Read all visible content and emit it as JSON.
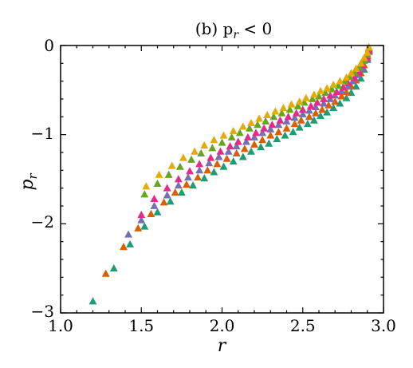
{
  "chart_data": {
    "type": "scatter",
    "title": "(b)  p",
    "title_sub": "r",
    "title_tail": " < 0",
    "xlabel": "r",
    "ylabel": "p",
    "ylabel_sub": "r",
    "xlim": [
      1.0,
      3.0
    ],
    "ylim": [
      -3,
      0
    ],
    "x_ticks": [
      "1.0",
      "1.5",
      "2.0",
      "2.5",
      "3.0"
    ],
    "y_ticks": [
      "0",
      "−1",
      "−2",
      "−3"
    ],
    "grid": false,
    "legend": "none",
    "marker": "triangle",
    "series": [
      {
        "color": "#1b9e77",
        "points": [
          [
            1.2,
            -2.87
          ],
          [
            1.33,
            -2.5
          ],
          [
            1.43,
            -2.23
          ],
          [
            1.52,
            -2.03
          ],
          [
            1.6,
            -1.87
          ],
          [
            1.68,
            -1.75
          ],
          [
            1.75,
            -1.65
          ],
          [
            1.82,
            -1.57
          ],
          [
            1.89,
            -1.49
          ],
          [
            1.95,
            -1.42
          ],
          [
            2.01,
            -1.36
          ],
          [
            2.07,
            -1.3
          ],
          [
            2.13,
            -1.25
          ],
          [
            2.18,
            -1.19
          ],
          [
            2.24,
            -1.14
          ],
          [
            2.29,
            -1.1
          ],
          [
            2.34,
            -1.05
          ],
          [
            2.39,
            -1.01
          ],
          [
            2.44,
            -0.97
          ],
          [
            2.48,
            -0.92
          ],
          [
            2.53,
            -0.88
          ],
          [
            2.57,
            -0.84
          ],
          [
            2.61,
            -0.79
          ],
          [
            2.65,
            -0.75
          ],
          [
            2.69,
            -0.7
          ],
          [
            2.73,
            -0.65
          ],
          [
            2.77,
            -0.59
          ],
          [
            2.8,
            -0.53
          ],
          [
            2.83,
            -0.46
          ],
          [
            2.86,
            -0.37
          ],
          [
            2.88,
            -0.27
          ],
          [
            2.9,
            -0.16
          ],
          [
            2.91,
            -0.06
          ]
        ]
      },
      {
        "color": "#d95f02",
        "points": [
          [
            1.28,
            -2.56
          ],
          [
            1.39,
            -2.26
          ],
          [
            1.48,
            -2.05
          ],
          [
            1.56,
            -1.89
          ],
          [
            1.64,
            -1.76
          ],
          [
            1.71,
            -1.65
          ],
          [
            1.78,
            -1.56
          ],
          [
            1.85,
            -1.48
          ],
          [
            1.91,
            -1.4
          ],
          [
            1.97,
            -1.33
          ],
          [
            2.03,
            -1.27
          ],
          [
            2.09,
            -1.21
          ],
          [
            2.14,
            -1.16
          ],
          [
            2.2,
            -1.11
          ],
          [
            2.25,
            -1.06
          ],
          [
            2.3,
            -1.01
          ],
          [
            2.35,
            -0.97
          ],
          [
            2.4,
            -0.93
          ],
          [
            2.45,
            -0.88
          ],
          [
            2.49,
            -0.84
          ],
          [
            2.54,
            -0.8
          ],
          [
            2.58,
            -0.76
          ],
          [
            2.62,
            -0.72
          ],
          [
            2.66,
            -0.67
          ],
          [
            2.7,
            -0.63
          ],
          [
            2.74,
            -0.57
          ],
          [
            2.77,
            -0.52
          ],
          [
            2.8,
            -0.46
          ],
          [
            2.83,
            -0.39
          ],
          [
            2.86,
            -0.31
          ],
          [
            2.88,
            -0.22
          ],
          [
            2.9,
            -0.12
          ],
          [
            2.91,
            -0.04
          ]
        ]
      },
      {
        "color": "#7570b3",
        "points": [
          [
            1.42,
            -2.12
          ],
          [
            1.5,
            -1.96
          ],
          [
            1.58,
            -1.8
          ],
          [
            1.66,
            -1.68
          ],
          [
            1.73,
            -1.57
          ],
          [
            1.79,
            -1.48
          ],
          [
            1.86,
            -1.4
          ],
          [
            1.92,
            -1.32
          ],
          [
            1.98,
            -1.25
          ],
          [
            2.04,
            -1.19
          ],
          [
            2.09,
            -1.13
          ],
          [
            2.15,
            -1.08
          ],
          [
            2.2,
            -1.03
          ],
          [
            2.25,
            -0.98
          ],
          [
            2.3,
            -0.94
          ],
          [
            2.35,
            -0.89
          ],
          [
            2.4,
            -0.85
          ],
          [
            2.45,
            -0.81
          ],
          [
            2.5,
            -0.77
          ],
          [
            2.54,
            -0.73
          ],
          [
            2.58,
            -0.69
          ],
          [
            2.63,
            -0.65
          ],
          [
            2.67,
            -0.6
          ],
          [
            2.7,
            -0.56
          ],
          [
            2.74,
            -0.51
          ],
          [
            2.78,
            -0.46
          ],
          [
            2.81,
            -0.4
          ],
          [
            2.84,
            -0.33
          ],
          [
            2.87,
            -0.25
          ],
          [
            2.89,
            -0.16
          ],
          [
            2.91,
            -0.07
          ]
        ]
      },
      {
        "color": "#e7298a",
        "points": [
          [
            1.5,
            -1.9
          ],
          [
            1.58,
            -1.72
          ],
          [
            1.66,
            -1.6
          ],
          [
            1.73,
            -1.5
          ],
          [
            1.8,
            -1.41
          ],
          [
            1.86,
            -1.33
          ],
          [
            1.93,
            -1.26
          ],
          [
            1.99,
            -1.19
          ],
          [
            2.05,
            -1.13
          ],
          [
            2.1,
            -1.08
          ],
          [
            2.16,
            -1.03
          ],
          [
            2.21,
            -0.98
          ],
          [
            2.26,
            -0.93
          ],
          [
            2.31,
            -0.89
          ],
          [
            2.36,
            -0.84
          ],
          [
            2.41,
            -0.8
          ],
          [
            2.46,
            -0.76
          ],
          [
            2.5,
            -0.72
          ],
          [
            2.55,
            -0.68
          ],
          [
            2.59,
            -0.64
          ],
          [
            2.63,
            -0.6
          ],
          [
            2.67,
            -0.56
          ],
          [
            2.71,
            -0.52
          ],
          [
            2.75,
            -0.47
          ],
          [
            2.78,
            -0.42
          ],
          [
            2.82,
            -0.36
          ],
          [
            2.85,
            -0.3
          ],
          [
            2.87,
            -0.22
          ],
          [
            2.9,
            -0.14
          ],
          [
            2.91,
            -0.05
          ]
        ]
      },
      {
        "color": "#66a61e",
        "points": [
          [
            1.52,
            -1.67
          ],
          [
            1.6,
            -1.55
          ],
          [
            1.67,
            -1.45
          ],
          [
            1.74,
            -1.36
          ],
          [
            1.81,
            -1.28
          ],
          [
            1.87,
            -1.21
          ],
          [
            1.94,
            -1.15
          ],
          [
            2.0,
            -1.09
          ],
          [
            2.06,
            -1.03
          ],
          [
            2.11,
            -0.98
          ],
          [
            2.17,
            -0.93
          ],
          [
            2.22,
            -0.89
          ],
          [
            2.27,
            -0.85
          ],
          [
            2.32,
            -0.8
          ],
          [
            2.37,
            -0.76
          ],
          [
            2.42,
            -0.72
          ],
          [
            2.47,
            -0.68
          ],
          [
            2.51,
            -0.64
          ],
          [
            2.56,
            -0.6
          ],
          [
            2.6,
            -0.57
          ],
          [
            2.64,
            -0.53
          ],
          [
            2.68,
            -0.49
          ],
          [
            2.72,
            -0.45
          ],
          [
            2.76,
            -0.4
          ],
          [
            2.79,
            -0.35
          ],
          [
            2.82,
            -0.3
          ],
          [
            2.85,
            -0.24
          ],
          [
            2.88,
            -0.17
          ],
          [
            2.9,
            -0.1
          ],
          [
            2.91,
            -0.03
          ]
        ]
      },
      {
        "color": "#e6ab02",
        "points": [
          [
            1.53,
            -1.58
          ],
          [
            1.61,
            -1.45
          ],
          [
            1.69,
            -1.35
          ],
          [
            1.76,
            -1.26
          ],
          [
            1.83,
            -1.19
          ],
          [
            1.89,
            -1.12
          ],
          [
            1.95,
            -1.06
          ],
          [
            2.01,
            -1.01
          ],
          [
            2.07,
            -0.96
          ],
          [
            2.13,
            -0.91
          ],
          [
            2.18,
            -0.87
          ],
          [
            2.23,
            -0.82
          ],
          [
            2.28,
            -0.78
          ],
          [
            2.33,
            -0.74
          ],
          [
            2.38,
            -0.7
          ],
          [
            2.43,
            -0.66
          ],
          [
            2.48,
            -0.63
          ],
          [
            2.52,
            -0.59
          ],
          [
            2.57,
            -0.55
          ],
          [
            2.61,
            -0.51
          ],
          [
            2.65,
            -0.48
          ],
          [
            2.69,
            -0.44
          ],
          [
            2.73,
            -0.4
          ],
          [
            2.77,
            -0.36
          ],
          [
            2.8,
            -0.31
          ],
          [
            2.83,
            -0.26
          ],
          [
            2.86,
            -0.2
          ],
          [
            2.88,
            -0.14
          ],
          [
            2.9,
            -0.08
          ],
          [
            2.91,
            -0.02
          ]
        ]
      }
    ]
  }
}
